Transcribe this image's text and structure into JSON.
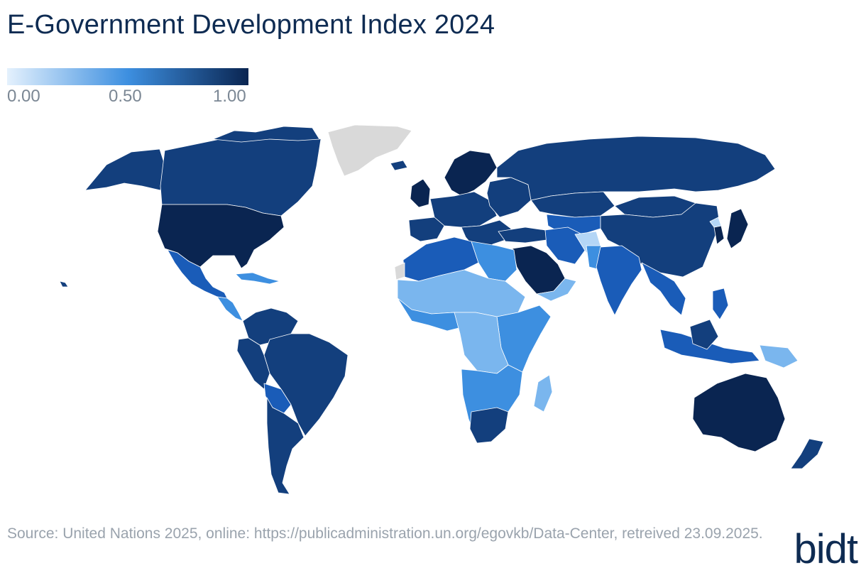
{
  "title": "E-Government Development Index 2024",
  "legend": {
    "min_label": "0.00",
    "mid_label": "0.50",
    "max_label": "1.00",
    "color_low": "#e4f1fd",
    "color_mid": "#3d8fe0",
    "color_high": "#0a2551"
  },
  "colors": {
    "very_high": "#0a2551",
    "high": "#133f7d",
    "mid_high": "#1a5cb8",
    "mid": "#3d8fe0",
    "mid_low": "#7ab6ee",
    "low": "#b4d6f6",
    "no_data": "#d9d9d9"
  },
  "source": "Source: United Nations 2025, online: https://publicadministration.un.org/egovkb/Data-Center, retreived 23.09.2025.",
  "logo": "bidt"
}
